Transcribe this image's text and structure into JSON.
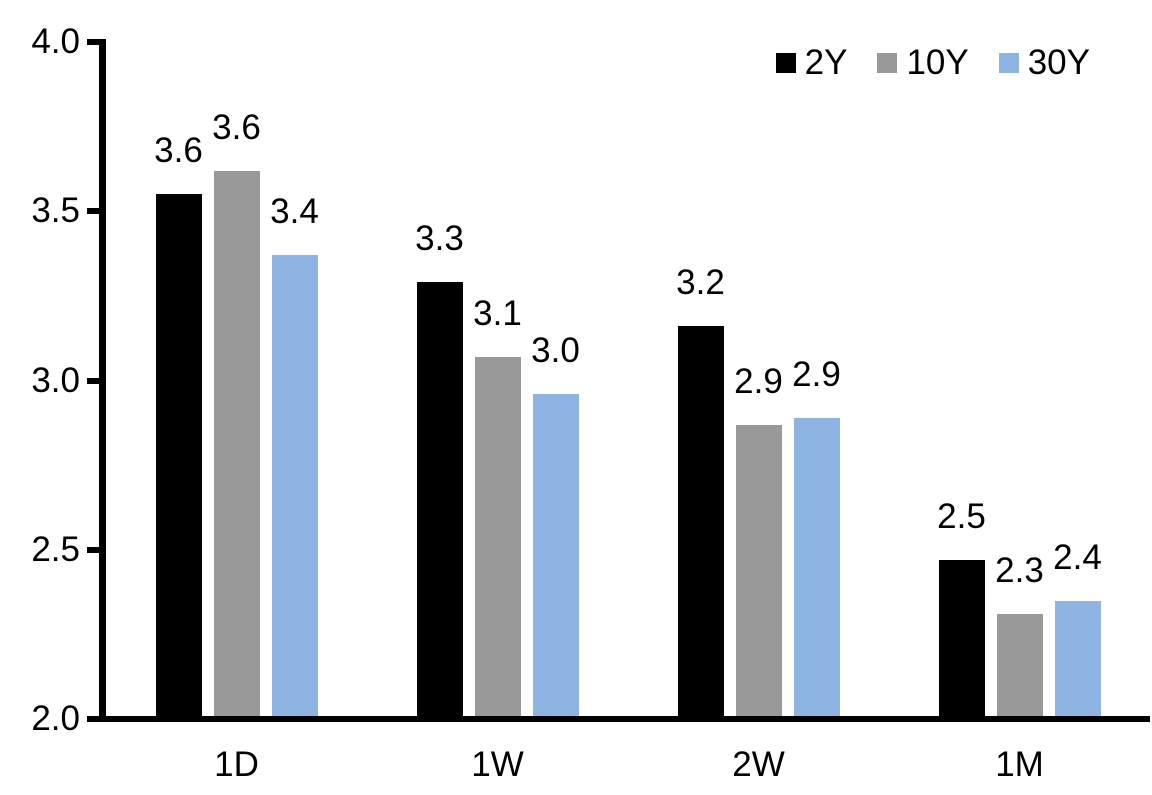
{
  "chart_data": {
    "type": "bar",
    "title": "",
    "xlabel": "",
    "ylabel": "",
    "categories": [
      "1D",
      "1W",
      "2W",
      "1M"
    ],
    "series": [
      {
        "name": "2Y",
        "color": "#000000",
        "values": [
          3.55,
          3.29,
          3.16,
          2.47
        ],
        "labels": [
          "3.6",
          "3.3",
          "3.2",
          "2.5"
        ]
      },
      {
        "name": "10Y",
        "color": "#999999",
        "values": [
          3.62,
          3.07,
          2.87,
          2.31
        ],
        "labels": [
          "3.6",
          "3.1",
          "2.9",
          "2.3"
        ]
      },
      {
        "name": "30Y",
        "color": "#8DB4E2",
        "values": [
          3.37,
          2.96,
          2.89,
          2.35
        ],
        "labels": [
          "3.4",
          "3.0",
          "2.9",
          "2.4"
        ]
      }
    ],
    "ylim": [
      2.0,
      4.0
    ],
    "yticks": [
      2.0,
      2.5,
      3.0,
      3.5,
      4.0
    ],
    "ytick_labels": [
      "2.0",
      "2.5",
      "3.0",
      "3.5",
      "4.0"
    ],
    "grid": false,
    "legend_position": "top-right",
    "axis_color": "#000000",
    "text_color": "#000000",
    "background": "#FFFFFF"
  }
}
